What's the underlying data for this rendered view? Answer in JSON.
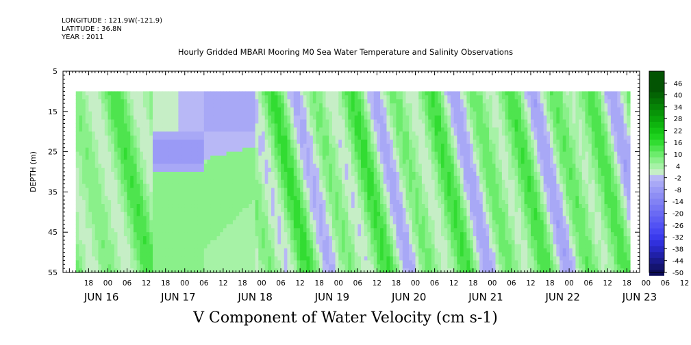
{
  "header": {
    "longitude": "LONGITUDE : 121.9W(-121.9)",
    "latitude": "LATITUDE : 36.8N",
    "year": "YEAR : 2011"
  },
  "chart_data": {
    "type": "heatmap",
    "title": "Hourly Gridded MBARI Mooring M0 Sea Water Temperature and Salinity Observations",
    "xlabel": "V Component of Water Velocity (cm s-1)",
    "ylabel": "DEPTH (m)",
    "y_axis": {
      "range": [
        5,
        55
      ],
      "inverted": true,
      "ticks": [
        5,
        15,
        25,
        35,
        45,
        55
      ],
      "minor_step": 1
    },
    "x_axis": {
      "range_hours_from_jun16_00": [
        -14,
        166
      ],
      "hour_ticks": [
        "18",
        "00",
        "06",
        "12",
        "18",
        "00",
        "06",
        "12",
        "18",
        "00",
        "06",
        "12",
        "18",
        "00",
        "06",
        "12",
        "18",
        "00",
        "06",
        "12",
        "18",
        "00",
        "06",
        "12",
        "18",
        "00",
        "06",
        "12",
        "18",
        "00",
        "06",
        "12"
      ],
      "day_labels": [
        "JUN 16",
        "JUN 17",
        "JUN 18",
        "JUN 19",
        "JUN 20",
        "JUN 21",
        "JUN 22",
        "JUN 23"
      ]
    },
    "data_extent": {
      "depth": [
        10,
        55
      ],
      "hours_from_jun16_00": [
        -10,
        163
      ]
    },
    "colorbar": {
      "levels": [
        -50,
        -44,
        -38,
        -32,
        -26,
        -20,
        -14,
        -8,
        -2,
        4,
        10,
        16,
        22,
        28,
        34,
        40,
        46
      ],
      "labels": [
        "46",
        "40",
        "34",
        "28",
        "22",
        "16",
        "10",
        "4",
        "-2",
        "-8",
        "-14",
        "-20",
        "-26",
        "-32",
        "-38",
        "-44",
        "-50"
      ],
      "colors": {
        "-50": "#0c0c58",
        "-47": "#141470",
        "-44": "#1a1a8c",
        "-41": "#2020a8",
        "-38": "#2828c4",
        "-35": "#3030dc",
        "-32": "#3a3aec",
        "-29": "#4646f2",
        "-26": "#5252f4",
        "-23": "#5e5ef4",
        "-20": "#6a6af4",
        "-17": "#7676f4",
        "-14": "#8282f4",
        "-11": "#8e8ef4",
        "-8": "#9a9af6",
        "-5": "#a8a8f6",
        "-2": "#b8b8f6",
        "1": "#c6eec6",
        "4": "#a6f2a6",
        "7": "#8af08a",
        "10": "#6cec6c",
        "13": "#4ee44e",
        "16": "#32dc32",
        "19": "#1ed21e",
        "22": "#14c414",
        "25": "#0eb40e",
        "28": "#0aa40a",
        "31": "#089408",
        "34": "#068406",
        "37": "#057405",
        "40": "#046404",
        "43": "#035403"
      }
    },
    "field_description_by_column": {
      "note": "Approximate dominant V-velocity (cm s-1) by time window, derived visually",
      "segments": [
        {
          "hours": [
            -10,
            14
          ],
          "pattern": "alternating green streaks +4 to +16 with weak blue -2 to -8 patches"
        },
        {
          "hours": [
            14,
            46
          ],
          "pattern": "interpolated gap: blue -2 to -8 upper 10-28 m, green +4 to +10 below"
        },
        {
          "hours": [
            46,
            163
          ],
          "pattern": "tidal bands alternating -8 to +16, strongest green near 12h each day"
        }
      ]
    }
  }
}
